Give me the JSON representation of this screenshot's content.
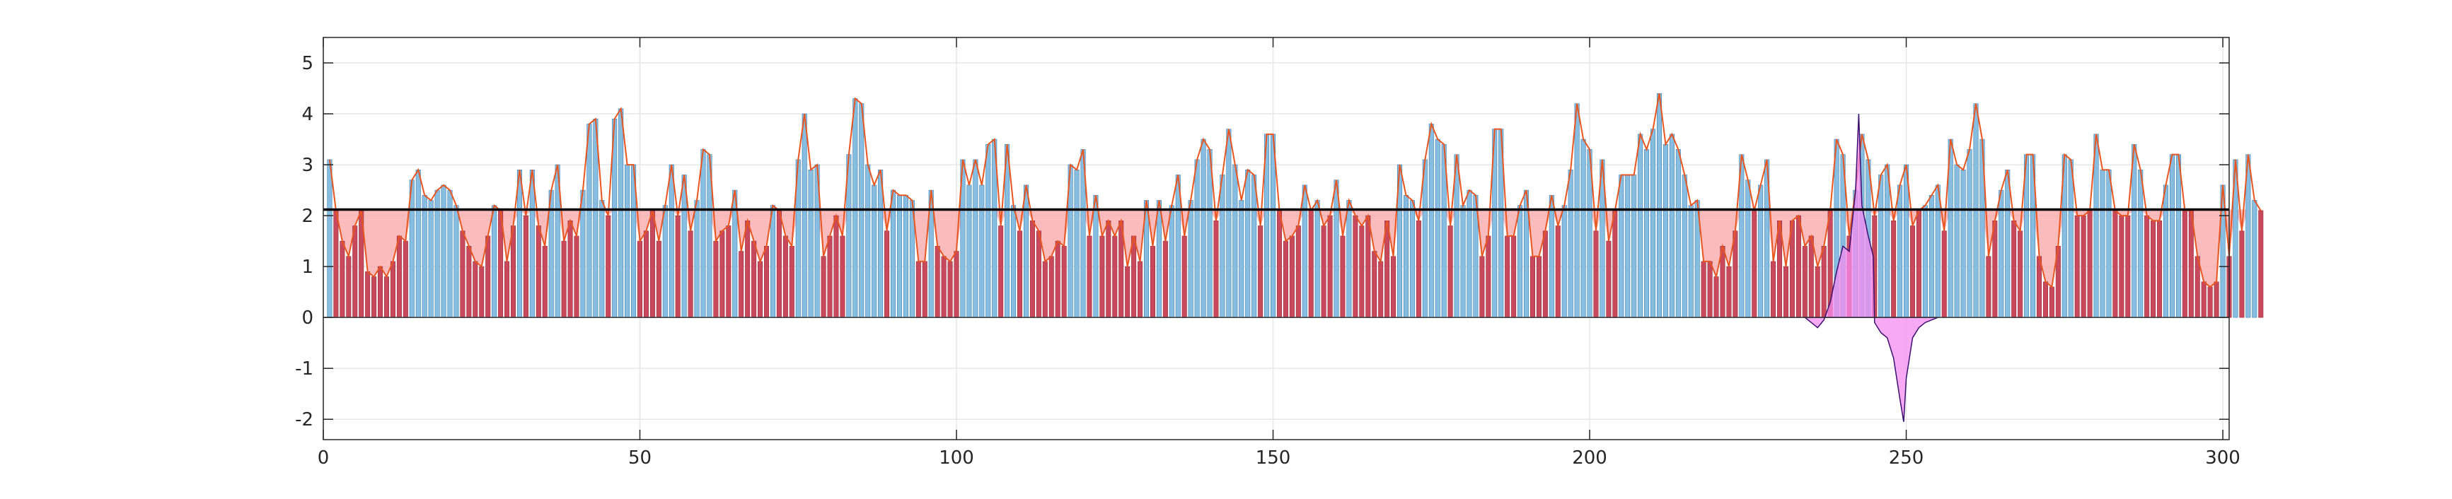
{
  "chart_data": {
    "type": "bar",
    "title": "",
    "xlabel": "",
    "ylabel": "",
    "xlim": [
      0,
      301
    ],
    "ylim": [
      -2.4,
      5.5
    ],
    "xticks": [
      0,
      50,
      100,
      150,
      200,
      250,
      300
    ],
    "yticks": [
      -2,
      -1,
      0,
      1,
      2,
      3,
      4,
      5
    ],
    "grid": true,
    "threshold": 2.12,
    "colors": {
      "above_fill": "#87bde0",
      "above_stroke": "#3c7fb0",
      "below_bar": "#c8495c",
      "below_shade": "#f7a4a4",
      "profile_line": "#e8551f",
      "threshold_line": "#000000",
      "overlay_fill": "#f58cf0",
      "overlay_stroke": "#3a1070"
    },
    "series": [
      {
        "values": [
          3.1,
          2.1,
          1.5,
          1.2,
          1.8,
          2.1,
          0.9,
          0.8,
          1.0,
          0.8,
          1.1,
          1.6,
          1.5,
          2.7,
          2.9,
          2.4,
          2.3,
          2.5,
          2.6,
          2.5,
          2.2,
          1.7,
          1.4,
          1.1,
          1.0,
          1.6,
          2.2,
          2.1,
          1.1,
          1.8,
          2.9,
          2.0,
          2.9,
          1.8,
          1.4,
          2.5,
          3.0,
          1.5,
          1.9,
          1.6,
          2.5,
          3.8,
          3.9,
          2.3,
          2.0,
          3.9,
          4.1,
          3.0,
          3.0,
          1.5,
          1.7,
          2.1,
          1.5,
          2.2,
          3.0,
          2.0,
          2.8,
          1.7,
          2.3,
          3.3,
          3.2,
          1.5,
          1.7,
          1.8,
          2.5,
          1.3,
          1.9,
          1.5,
          1.1,
          1.4,
          2.2,
          2.1,
          1.6,
          1.4,
          3.1,
          4.0,
          2.9,
          3.0,
          1.2,
          1.6,
          2.0,
          1.6,
          3.2,
          4.3,
          4.2,
          3.0,
          2.6,
          2.9,
          1.7,
          2.5,
          2.4,
          2.4,
          2.3,
          1.1,
          1.1,
          2.5,
          1.4,
          1.2,
          1.1,
          1.3,
          3.1,
          2.6,
          3.1,
          2.6,
          3.4,
          3.5,
          1.8,
          3.4,
          2.2,
          1.7,
          2.6,
          1.9,
          1.7,
          1.1,
          1.2,
          1.5,
          1.4,
          3.0,
          2.9,
          3.3,
          1.6,
          2.4,
          1.6,
          1.9,
          1.6,
          1.9,
          1.0,
          1.6,
          1.1,
          2.3,
          1.4,
          2.3,
          1.5,
          2.2,
          2.8,
          1.6,
          2.3,
          3.1,
          3.5,
          3.3,
          1.9,
          2.8,
          3.7,
          3.0,
          2.3,
          2.9,
          2.8,
          1.8,
          3.6,
          3.6,
          2.1,
          1.5,
          1.6,
          1.8,
          2.6,
          2.1,
          2.3,
          1.8,
          2.0,
          2.7,
          1.6,
          2.3,
          2.0,
          1.8,
          2.0,
          1.3,
          1.1,
          1.9,
          1.2,
          3.0,
          2.4,
          2.3,
          1.9,
          3.1,
          3.8,
          3.5,
          3.4,
          1.8,
          3.2,
          2.2,
          2.5,
          2.4,
          1.2,
          1.6,
          3.7,
          3.7,
          1.6,
          1.6,
          2.2,
          2.5,
          1.2,
          1.2,
          1.7,
          2.4,
          1.8,
          2.2,
          2.9,
          4.2,
          3.5,
          3.3,
          1.7,
          3.1,
          1.5,
          2.1,
          2.8,
          2.8,
          2.8,
          3.6,
          3.3,
          3.7,
          4.4,
          3.4,
          3.6,
          3.3,
          2.8,
          2.2,
          2.3,
          1.1,
          1.1,
          0.8,
          1.4,
          1.0,
          1.7,
          3.2,
          2.7,
          2.1,
          2.6,
          3.1,
          1.1,
          1.9,
          1.0,
          1.9,
          2.0,
          1.4,
          1.6,
          1.0,
          1.4,
          2.1,
          3.5,
          3.2,
          1.6,
          2.5,
          3.6,
          3.1,
          2.0,
          2.8,
          3.0,
          1.9,
          2.6,
          3.0,
          1.8,
          2.1,
          2.2,
          2.4,
          2.6,
          1.7,
          3.5,
          3.0,
          2.9,
          3.3,
          4.2,
          3.5,
          1.2,
          1.9,
          2.5,
          2.9,
          1.9,
          1.7,
          3.2,
          3.2,
          1.2,
          0.7,
          0.6,
          1.4,
          3.2,
          3.1,
          2.0,
          2.0,
          2.1,
          3.6,
          2.9,
          2.9,
          2.1,
          2.0,
          2.0,
          3.4,
          2.9,
          2.0,
          1.9,
          1.9,
          2.6,
          3.2,
          3.2,
          2.1,
          2.1,
          1.2,
          0.7,
          0.6,
          0.7,
          2.6,
          1.2,
          3.1,
          1.7,
          3.2,
          2.3,
          2.1
        ]
      },
      {
        "values": [
          [
            234,
            0
          ],
          [
            235,
            -0.1
          ],
          [
            236,
            -0.2
          ],
          [
            237,
            -0.05
          ],
          [
            238,
            0.3
          ],
          [
            239,
            0.9
          ],
          [
            240,
            1.4
          ],
          [
            241,
            1.3
          ],
          [
            242,
            2.5
          ],
          [
            242.5,
            4.0
          ],
          [
            243,
            2.2
          ],
          [
            244,
            1.6
          ],
          [
            244.8,
            1.2
          ],
          [
            245,
            -0.1
          ],
          [
            246,
            -0.3
          ],
          [
            247,
            -0.4
          ],
          [
            248,
            -0.8
          ],
          [
            249,
            -1.6
          ],
          [
            249.6,
            -2.05
          ],
          [
            250,
            -1.2
          ],
          [
            251,
            -0.4
          ],
          [
            252,
            -0.2
          ],
          [
            253,
            -0.1
          ],
          [
            254,
            -0.05
          ],
          [
            255,
            0
          ]
        ]
      }
    ]
  }
}
